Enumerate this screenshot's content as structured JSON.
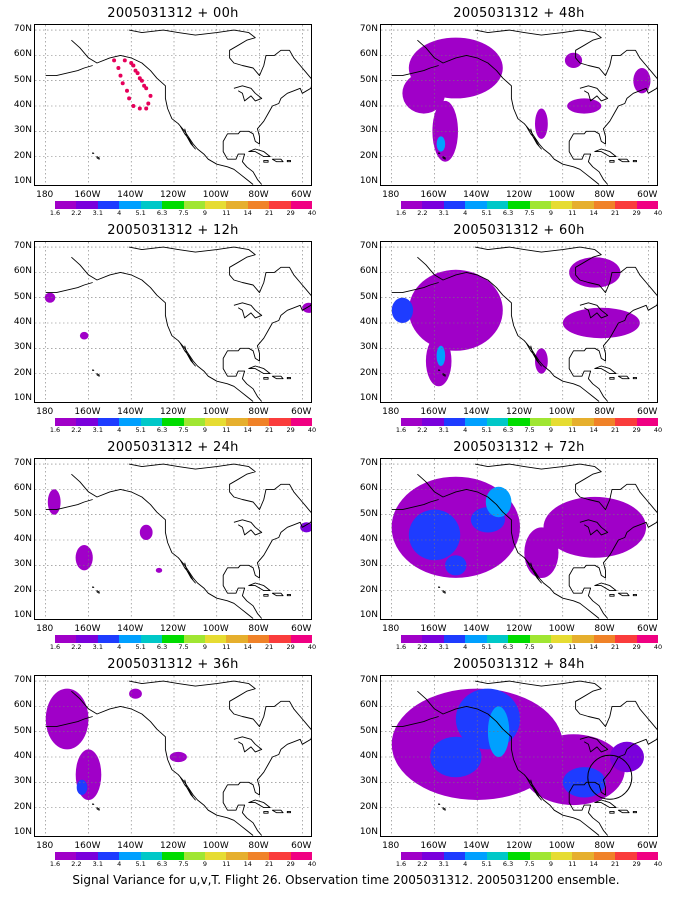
{
  "footer": "Signal Variance for u,v,T. Flight 26. Observation time 2005031312. 2005031200 ensemble.",
  "axes": {
    "lat_labels": [
      "70N",
      "60N",
      "50N",
      "40N",
      "30N",
      "20N",
      "10N"
    ],
    "lon_labels": [
      "180",
      "160W",
      "140W",
      "120W",
      "100W",
      "80W",
      "60W"
    ]
  },
  "colorbar": {
    "colors": [
      "#a000c8",
      "#7a00dc",
      "#1e3cff",
      "#00a0ff",
      "#00c8c8",
      "#00dc00",
      "#a0e632",
      "#e6dc32",
      "#e6af2d",
      "#f08228",
      "#fa3c3c",
      "#f00082"
    ],
    "labels": [
      "1.6",
      "2.2",
      "3.1",
      "4",
      "5.1",
      "6.3",
      "7.5",
      "9",
      "11",
      "14",
      "21",
      "29",
      "40"
    ]
  },
  "panels": [
    {
      "title": "2005031312 + 00h"
    },
    {
      "title": "2005031312 + 48h"
    },
    {
      "title": "2005031312 + 12h"
    },
    {
      "title": "2005031312 + 60h"
    },
    {
      "title": "2005031312 + 24h"
    },
    {
      "title": "2005031312 + 72h"
    },
    {
      "title": "2005031312 + 36h"
    },
    {
      "title": "2005031312 + 84h"
    }
  ]
}
